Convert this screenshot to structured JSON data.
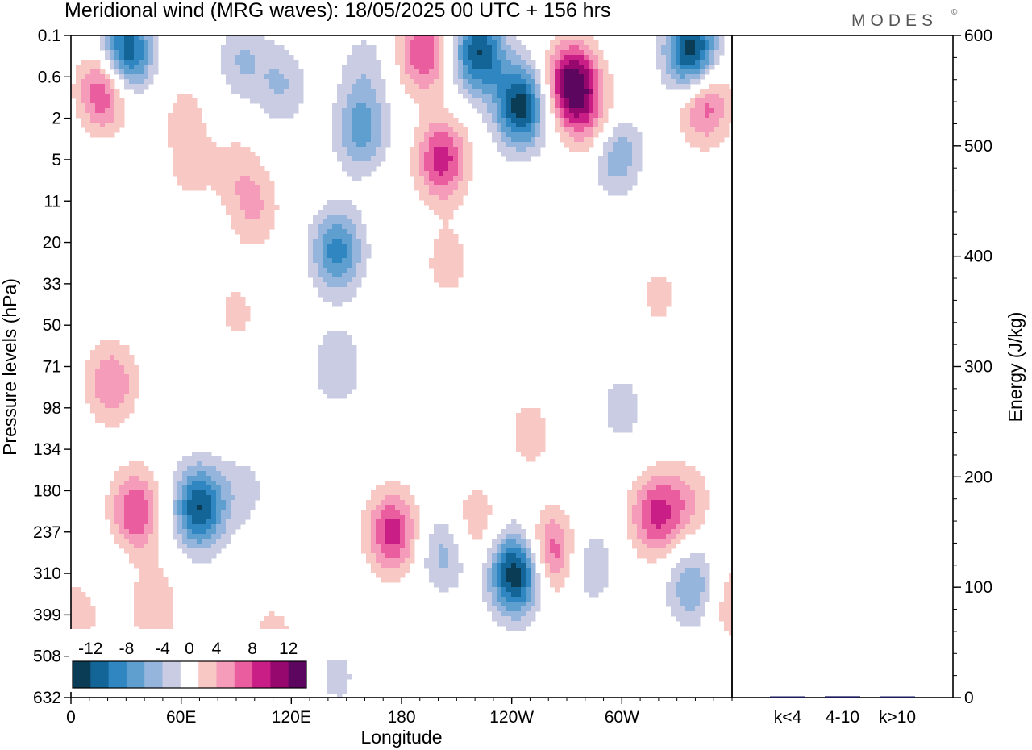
{
  "title": "Meridional wind (MRG waves):  18/05/2025  00 UTC  + 156 hrs",
  "brand": "MODES",
  "brand_mark": "©",
  "chart_data": [
    {
      "type": "heatmap",
      "title": "Meridional wind (MRG waves):  18/05/2025  00 UTC  + 156 hrs",
      "xlabel": "Longitude",
      "ylabel": "Pressure levels (hPa)",
      "x_ticks": [
        "0",
        "60E",
        "120E",
        "180",
        "120W",
        "60W"
      ],
      "x_tick_values": [
        0,
        60,
        120,
        180,
        240,
        300
      ],
      "xlim": [
        0,
        360
      ],
      "y_ticks": [
        "0.1",
        "0.6",
        "2",
        "5",
        "11",
        "20",
        "33",
        "50",
        "71",
        "98",
        "134",
        "180",
        "237",
        "310",
        "399",
        "508",
        "632"
      ],
      "y_scale": "model levels (top 0.1 hPa to bottom 632 hPa)",
      "colorbar": {
        "tick_labels": [
          "-12",
          "-8",
          "-4",
          "0",
          "4",
          "8",
          "12"
        ],
        "levels": [
          -14,
          -12,
          -10,
          -8,
          -6,
          -4,
          -2,
          2,
          4,
          6,
          8,
          10,
          12,
          14
        ],
        "colors": [
          "#0b3c56",
          "#136497",
          "#2f86c1",
          "#5f9fcf",
          "#95b5dc",
          "#c9cce2",
          "#ffffff",
          "#f8c8c4",
          "#f49cba",
          "#ea5d9e",
          "#c91e86",
          "#97086f",
          "#5d0660"
        ]
      },
      "blobs": [
        {
          "lon": 30,
          "lev": 0.4,
          "value": -12.5
        },
        {
          "lon": 18,
          "lev": 1.3,
          "value": 9
        },
        {
          "lon": 62,
          "lev": 1.9,
          "value": 2.5
        },
        {
          "lon": 65,
          "lev": 3.2,
          "value": 2.5
        },
        {
          "lon": 90,
          "lev": 3.2,
          "value": 2.5
        },
        {
          "lon": 93,
          "lev": 0.6,
          "value": -4
        },
        {
          "lon": 115,
          "lev": 1.2,
          "value": -4
        },
        {
          "lon": 100,
          "lev": 4.2,
          "value": 4
        },
        {
          "lon": 145,
          "lev": 5.2,
          "value": -9
        },
        {
          "lon": 158,
          "lev": 2.3,
          "value": -7
        },
        {
          "lon": 160,
          "lev": 0.8,
          "value": -3
        },
        {
          "lon": 192,
          "lev": 0.4,
          "value": 8
        },
        {
          "lon": 202,
          "lev": 3.0,
          "value": 9
        },
        {
          "lon": 222,
          "lev": 0.4,
          "value": -12
        },
        {
          "lon": 245,
          "lev": 1.7,
          "value": -13
        },
        {
          "lon": 273,
          "lev": 1.2,
          "value": 14
        },
        {
          "lon": 286,
          "lev": 2.2,
          "value": 5
        },
        {
          "lon": 296,
          "lev": 2.8,
          "value": -7
        },
        {
          "lon": 338,
          "lev": 0.4,
          "value": -14
        },
        {
          "lon": 345,
          "lev": 1.6,
          "value": 8
        },
        {
          "lon": 145,
          "lev": 8,
          "value": -4
        },
        {
          "lon": 205,
          "lev": 5.5,
          "value": 3
        },
        {
          "lon": 90,
          "lev": 6.7,
          "value": 2.5
        },
        {
          "lon": 320,
          "lev": 6.3,
          "value": 2.5
        },
        {
          "lon": 22,
          "lev": 8.4,
          "value": 6
        },
        {
          "lon": 70,
          "lev": 11.4,
          "value": -12
        },
        {
          "lon": 95,
          "lev": 11.0,
          "value": -2.5
        },
        {
          "lon": 35,
          "lev": 11.5,
          "value": 8
        },
        {
          "lon": 45,
          "lev": 13.8,
          "value": 4
        },
        {
          "lon": 175,
          "lev": 12.0,
          "value": 9
        },
        {
          "lon": 203,
          "lev": 12.5,
          "value": -5
        },
        {
          "lon": 220,
          "lev": 11.8,
          "value": 4
        },
        {
          "lon": 242,
          "lev": 13.0,
          "value": -14
        },
        {
          "lon": 262,
          "lev": 12.5,
          "value": 8
        },
        {
          "lon": 282,
          "lev": 12.8,
          "value": -4
        },
        {
          "lon": 318,
          "lev": 11.6,
          "value": 8
        },
        {
          "lon": 335,
          "lev": 11.3,
          "value": 4
        },
        {
          "lon": 338,
          "lev": 13.3,
          "value": -6
        },
        {
          "lon": 360,
          "lev": 13.7,
          "value": 4
        },
        {
          "lon": 110,
          "lev": 14.6,
          "value": 3
        },
        {
          "lon": 15,
          "lev": 13.0,
          "value": -2.5
        },
        {
          "lon": 145,
          "lev": 15.5,
          "value": -2.5
        },
        {
          "lon": 5,
          "lev": 13.8,
          "value": 4
        },
        {
          "lon": 250,
          "lev": 9.6,
          "value": 3
        },
        {
          "lon": 300,
          "lev": 9.0,
          "value": -3
        }
      ]
    },
    {
      "type": "bar",
      "categories": [
        "k<4",
        "4-10",
        "k>10"
      ],
      "values": [
        0.5,
        1.2,
        0.3
      ],
      "ylabel": "Energy (J/kg)",
      "ylim": [
        0,
        600
      ],
      "y_ticks": [
        "0",
        "100",
        "200",
        "300",
        "400",
        "500",
        "600"
      ],
      "y_tick_values": [
        0,
        100,
        200,
        300,
        400,
        500,
        600
      ],
      "bar_color": "#1c1c5c"
    }
  ]
}
